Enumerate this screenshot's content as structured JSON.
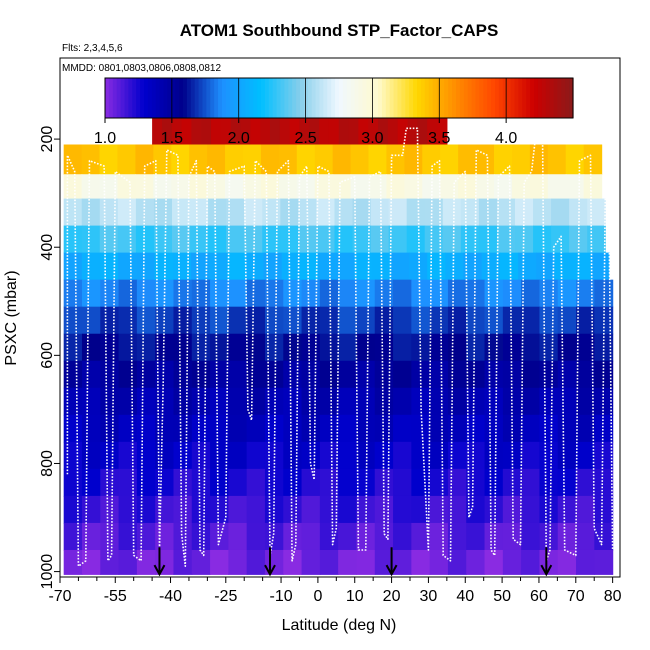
{
  "chart_data": {
    "type": "heatmap",
    "title": "ATOM1 Southbound STP_Factor_CAPS",
    "flights_label": "Flts: 2,3,4,5,6",
    "dates_label": "MMDD: 0801,0803,0806,0808,0812",
    "xlabel": "Latitude (deg N)",
    "ylabel": "PSXC (mbar)",
    "xlim": [
      -70,
      82
    ],
    "ylim": [
      1010,
      50
    ],
    "x_ticks": [
      -70,
      -55,
      -40,
      -25,
      -10,
      0,
      10,
      20,
      30,
      40,
      50,
      60,
      70,
      80
    ],
    "x_tick_labels": [
      "-70",
      "-55",
      "-40",
      "-25",
      "-10",
      "0",
      "10",
      "20",
      "30",
      "40",
      "50",
      "60",
      "70",
      "80"
    ],
    "y_ticks": [
      200,
      400,
      600,
      800,
      1000
    ],
    "y_tick_labels": [
      "200",
      "400",
      "600",
      "800",
      "1000"
    ],
    "colorbar": {
      "min": 1.0,
      "max": 4.5,
      "ticks": [
        1.0,
        1.5,
        2.0,
        2.5,
        3.0,
        3.5,
        4.0
      ],
      "tick_labels": [
        "1.0",
        "1.5",
        "2.0",
        "2.5",
        "3.0",
        "3.5",
        "4.0"
      ],
      "colors": [
        "#8a2be2",
        "#0000cd",
        "#00008b",
        "#1e90ff",
        "#00bfff",
        "#87ceeb",
        "#f0f8ff",
        "#fffacd",
        "#ffd700",
        "#ff8c00",
        "#ff4500",
        "#cc0000",
        "#8b1a1a"
      ]
    },
    "pressure_bands": [
      {
        "p_top": 160,
        "p_bottom": 210,
        "lat_min": -45,
        "lat_max": 35,
        "value": 4.3
      },
      {
        "p_top": 210,
        "p_bottom": 265,
        "lat_min": -69,
        "lat_max": 77,
        "value": 3.4
      },
      {
        "p_top": 265,
        "p_bottom": 310,
        "lat_min": -69,
        "lat_max": 77,
        "value": 2.9
      },
      {
        "p_top": 310,
        "p_bottom": 360,
        "lat_min": -69,
        "lat_max": 78,
        "value": 2.6
      },
      {
        "p_top": 360,
        "p_bottom": 410,
        "lat_min": -69,
        "lat_max": 78,
        "value": 2.3
      },
      {
        "p_top": 410,
        "p_bottom": 460,
        "lat_min": -69,
        "lat_max": 79,
        "value": 2.05
      },
      {
        "p_top": 460,
        "p_bottom": 510,
        "lat_min": -69,
        "lat_max": 80,
        "value": 1.85
      },
      {
        "p_top": 510,
        "p_bottom": 560,
        "lat_min": -69,
        "lat_max": 80,
        "value": 1.7
      },
      {
        "p_top": 560,
        "p_bottom": 610,
        "lat_min": -69,
        "lat_max": 80,
        "value": 1.6
      },
      {
        "p_top": 610,
        "p_bottom": 660,
        "lat_min": -69,
        "lat_max": 80,
        "value": 1.5
      },
      {
        "p_top": 660,
        "p_bottom": 710,
        "lat_min": -69,
        "lat_max": 80,
        "value": 1.42
      },
      {
        "p_top": 710,
        "p_bottom": 760,
        "lat_min": -69,
        "lat_max": 80,
        "value": 1.36
      },
      {
        "p_top": 760,
        "p_bottom": 810,
        "lat_min": -69,
        "lat_max": 80,
        "value": 1.3
      },
      {
        "p_top": 810,
        "p_bottom": 860,
        "lat_min": -69,
        "lat_max": 80,
        "value": 1.24
      },
      {
        "p_top": 860,
        "p_bottom": 910,
        "lat_min": -69,
        "lat_max": 80,
        "value": 1.18
      },
      {
        "p_top": 910,
        "p_bottom": 960,
        "lat_min": -69,
        "lat_max": 80,
        "value": 1.12
      },
      {
        "p_top": 960,
        "p_bottom": 1005,
        "lat_min": -69,
        "lat_max": 80,
        "value": 1.06
      }
    ],
    "profile_arrows_lat": [
      -43,
      -13,
      20,
      62
    ],
    "flight_track": [
      [
        -68,
        820
      ],
      [
        -68,
        230
      ],
      [
        -66,
        260
      ],
      [
        -65,
        990
      ],
      [
        -63,
        980
      ],
      [
        -62,
        240
      ],
      [
        -58,
        250
      ],
      [
        -57,
        980
      ],
      [
        -56,
        970
      ],
      [
        -55,
        260
      ],
      [
        -51,
        280
      ],
      [
        -50,
        970
      ],
      [
        -48,
        980
      ],
      [
        -47,
        250
      ],
      [
        -44,
        240
      ],
      [
        -43,
        960
      ],
      [
        -42,
        650
      ],
      [
        -41,
        220
      ],
      [
        -38,
        230
      ],
      [
        -37,
        930
      ],
      [
        -36,
        990
      ],
      [
        -35,
        270
      ],
      [
        -33,
        240
      ],
      [
        -32,
        960
      ],
      [
        -31,
        970
      ],
      [
        -30,
        250
      ],
      [
        -28,
        260
      ],
      [
        -27,
        950
      ],
      [
        -25,
        900
      ],
      [
        -24,
        260
      ],
      [
        -20,
        250
      ],
      [
        -19,
        700
      ],
      [
        -18,
        720
      ],
      [
        -17,
        240
      ],
      [
        -14,
        260
      ],
      [
        -13,
        970
      ],
      [
        -12,
        930
      ],
      [
        -11,
        260
      ],
      [
        -8,
        240
      ],
      [
        -7,
        980
      ],
      [
        -6,
        950
      ],
      [
        -5,
        270
      ],
      [
        -3,
        250
      ],
      [
        -2,
        800
      ],
      [
        -1,
        830
      ],
      [
        0,
        250
      ],
      [
        3,
        260
      ],
      [
        4,
        950
      ],
      [
        5,
        920
      ],
      [
        6,
        280
      ],
      [
        10,
        270
      ],
      [
        11,
        960
      ],
      [
        13,
        960
      ],
      [
        14,
        270
      ],
      [
        17,
        260
      ],
      [
        18,
        930
      ],
      [
        19,
        940
      ],
      [
        20,
        230
      ],
      [
        23,
        230
      ],
      [
        24,
        180
      ],
      [
        27,
        180
      ],
      [
        28,
        700
      ],
      [
        30,
        960
      ],
      [
        31,
        250
      ],
      [
        33,
        240
      ],
      [
        34,
        970
      ],
      [
        36,
        980
      ],
      [
        37,
        280
      ],
      [
        40,
        260
      ],
      [
        41,
        900
      ],
      [
        42,
        880
      ],
      [
        43,
        220
      ],
      [
        46,
        230
      ],
      [
        47,
        960
      ],
      [
        48,
        970
      ],
      [
        49,
        270
      ],
      [
        52,
        250
      ],
      [
        53,
        940
      ],
      [
        55,
        950
      ],
      [
        56,
        280
      ],
      [
        58,
        260
      ],
      [
        59,
        200
      ],
      [
        61,
        210
      ],
      [
        62,
        980
      ],
      [
        63,
        960
      ],
      [
        64,
        400
      ],
      [
        66,
        380
      ],
      [
        67,
        960
      ],
      [
        70,
        970
      ],
      [
        71,
        240
      ],
      [
        74,
        230
      ],
      [
        75,
        920
      ],
      [
        77,
        950
      ],
      [
        78,
        300
      ],
      [
        79,
        330
      ],
      [
        80,
        960
      ]
    ]
  }
}
